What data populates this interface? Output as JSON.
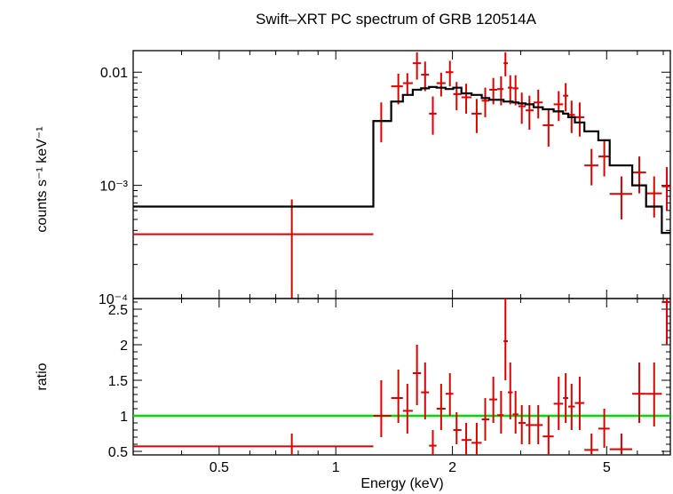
{
  "chart_data": {
    "type": "scatter",
    "title": "Swift–XRT PC spectrum of GRB 120514A",
    "xlabel": "Energy (keV)",
    "x_scale": "log",
    "x_ticks": [
      0.5,
      1,
      2,
      5
    ],
    "x_tick_labels": [
      "0.5",
      "1",
      "2",
      "5"
    ],
    "xlim": [
      0.3,
      7.3
    ],
    "colors": {
      "data": "#e00000",
      "model": "#000000",
      "unity": "#00dd00",
      "axes": "#000000"
    },
    "panels": [
      {
        "id": "spectrum",
        "ylabel": "counts s⁻¹ keV⁻¹",
        "y_scale": "log",
        "ylim": [
          0.0001,
          0.0155
        ],
        "y_ticks": [
          0.0001,
          0.001,
          0.01
        ],
        "y_tick_labels": [
          "10⁻⁴",
          "10⁻³",
          "0.01"
        ],
        "series": [
          {
            "kind": "data",
            "x": [
              0.77,
              1.31,
              1.45,
              1.53,
              1.62,
              1.7,
              1.78,
              1.87,
              1.97,
              2.05,
              2.17,
              2.31,
              2.43,
              2.55,
              2.67,
              2.74,
              2.82,
              2.91,
              3.02,
              3.16,
              3.33,
              3.54,
              3.76,
              3.92,
              4.06,
              4.26,
              4.57,
              4.93,
              5.46,
              6.07,
              6.63,
              7.15
            ],
            "x_low": [
              0.3,
              1.25,
              1.39,
              1.49,
              1.58,
              1.66,
              1.74,
              1.82,
              1.92,
              2.01,
              2.11,
              2.24,
              2.38,
              2.49,
              2.61,
              2.71,
              2.78,
              2.86,
              2.96,
              3.09,
              3.24,
              3.42,
              3.65,
              3.86,
              3.98,
              4.14,
              4.38,
              4.76,
              5.09,
              5.82,
              6.32,
              6.94
            ],
            "x_high": [
              1.25,
              1.39,
              1.49,
              1.58,
              1.66,
              1.74,
              1.82,
              1.92,
              2.01,
              2.11,
              2.24,
              2.38,
              2.49,
              2.61,
              2.71,
              2.78,
              2.86,
              2.96,
              3.09,
              3.24,
              3.42,
              3.65,
              3.86,
              3.98,
              4.14,
              4.38,
              4.76,
              5.09,
              5.82,
              6.32,
              6.94,
              7.3
            ],
            "y": [
              0.00037,
              0.0037,
              0.0075,
              0.008,
              0.012,
              0.0095,
              0.0043,
              0.008,
              0.01,
              0.0064,
              0.006,
              0.0043,
              0.0056,
              0.007,
              0.0071,
              0.012,
              0.0073,
              0.0072,
              0.005,
              0.0046,
              0.0054,
              0.0034,
              0.0052,
              0.0062,
              0.0042,
              0.004,
              0.0015,
              0.0018,
              0.00084,
              0.0013,
              0.00085,
              0.00098
            ],
            "y_low": [
              0.0001,
              0.0024,
              0.0052,
              0.0062,
              0.0086,
              0.0068,
              0.0028,
              0.0061,
              0.0075,
              0.0046,
              0.0043,
              0.0029,
              0.004,
              0.0052,
              0.0051,
              0.0092,
              0.0052,
              0.0051,
              0.0035,
              0.0031,
              0.0039,
              0.0022,
              0.0037,
              0.0045,
              0.0029,
              0.0027,
              0.001,
              0.0012,
              0.0005,
              0.00085,
              0.00052,
              0.0006
            ],
            "y_high": [
              0.00075,
              0.0054,
              0.0097,
              0.0098,
              0.015,
              0.0124,
              0.0061,
              0.0099,
              0.0126,
              0.0082,
              0.0079,
              0.0058,
              0.0073,
              0.0089,
              0.0092,
              0.015,
              0.0094,
              0.0094,
              0.0066,
              0.0062,
              0.007,
              0.0047,
              0.0068,
              0.008,
              0.0056,
              0.0054,
              0.0021,
              0.0025,
              0.0012,
              0.0018,
              0.0012,
              0.00145
            ]
          },
          {
            "kind": "model-step",
            "edges": [
              0.3,
              1.25,
              1.39,
              1.49,
              1.58,
              1.66,
              1.74,
              1.82,
              1.92,
              2.01,
              2.11,
              2.24,
              2.38,
              2.49,
              2.61,
              2.71,
              2.78,
              2.86,
              2.96,
              3.09,
              3.24,
              3.42,
              3.65,
              3.86,
              3.98,
              4.14,
              4.38,
              4.76,
              5.09,
              5.82,
              6.32,
              6.94,
              7.3
            ],
            "values": [
              0.00065,
              0.0037,
              0.0055,
              0.0063,
              0.007,
              0.0072,
              0.0074,
              0.0073,
              0.0071,
              0.0073,
              0.0065,
              0.0063,
              0.0059,
              0.0057,
              0.0057,
              0.0055,
              0.0055,
              0.0054,
              0.0053,
              0.0052,
              0.0049,
              0.0047,
              0.0045,
              0.0043,
              0.004,
              0.0036,
              0.003,
              0.0025,
              0.0015,
              0.001,
              0.00065,
              0.00038
            ]
          }
        ]
      },
      {
        "id": "ratio",
        "ylabel": "ratio",
        "y_scale": "linear",
        "ylim": [
          0.45,
          2.65
        ],
        "y_ticks": [
          0.5,
          1,
          1.5,
          2,
          2.5
        ],
        "y_tick_labels": [
          "0.5",
          "1",
          "1.5",
          "2",
          "2.5"
        ],
        "unity_line": 1,
        "series": [
          {
            "kind": "data",
            "x": [
              0.77,
              1.31,
              1.45,
              1.53,
              1.62,
              1.7,
              1.78,
              1.87,
              1.97,
              2.05,
              2.17,
              2.31,
              2.43,
              2.55,
              2.67,
              2.74,
              2.82,
              2.91,
              3.02,
              3.16,
              3.33,
              3.54,
              3.76,
              3.92,
              4.06,
              4.26,
              4.57,
              4.93,
              5.46,
              6.07,
              6.63,
              7.15
            ],
            "x_low": [
              0.3,
              1.25,
              1.39,
              1.49,
              1.58,
              1.66,
              1.74,
              1.82,
              1.92,
              2.01,
              2.11,
              2.24,
              2.38,
              2.49,
              2.61,
              2.71,
              2.78,
              2.86,
              2.96,
              3.09,
              3.24,
              3.42,
              3.65,
              3.86,
              3.98,
              4.14,
              4.38,
              4.76,
              5.09,
              5.82,
              6.32,
              6.94
            ],
            "x_high": [
              1.25,
              1.39,
              1.49,
              1.58,
              1.66,
              1.74,
              1.82,
              1.92,
              2.01,
              2.11,
              2.24,
              2.38,
              2.49,
              2.61,
              2.71,
              2.78,
              2.86,
              2.96,
              3.09,
              3.24,
              3.42,
              3.65,
              3.86,
              3.98,
              4.14,
              4.38,
              4.76,
              5.09,
              5.82,
              6.32,
              6.94,
              7.3
            ],
            "y": [
              0.57,
              1.0,
              1.25,
              1.07,
              1.6,
              1.33,
              0.58,
              1.1,
              1.31,
              0.8,
              0.66,
              0.62,
              0.95,
              1.23,
              1.01,
              2.05,
              1.33,
              1.02,
              0.9,
              0.87,
              0.87,
              0.71,
              1.17,
              1.25,
              1.13,
              1.18,
              0.52,
              0.82,
              0.53,
              1.31,
              1.31,
              2.6
            ],
            "y_low": [
              0.45,
              0.7,
              0.9,
              0.75,
              1.15,
              0.95,
              0.45,
              0.8,
              1.0,
              0.6,
              0.45,
              0.45,
              0.65,
              0.9,
              0.75,
              1.5,
              0.95,
              0.75,
              0.6,
              0.6,
              0.6,
              0.45,
              0.8,
              0.9,
              0.8,
              0.8,
              0.45,
              0.55,
              0.45,
              0.9,
              0.85,
              2.0
            ],
            "y_high": [
              0.75,
              1.5,
              1.65,
              1.45,
              2.0,
              1.75,
              0.8,
              1.45,
              1.6,
              1.05,
              0.9,
              0.9,
              1.25,
              1.55,
              1.35,
              2.65,
              1.75,
              1.35,
              1.15,
              1.15,
              1.15,
              1.0,
              1.55,
              1.6,
              1.45,
              1.55,
              0.75,
              1.1,
              0.75,
              1.75,
              1.75,
              2.65
            ]
          }
        ]
      }
    ]
  }
}
